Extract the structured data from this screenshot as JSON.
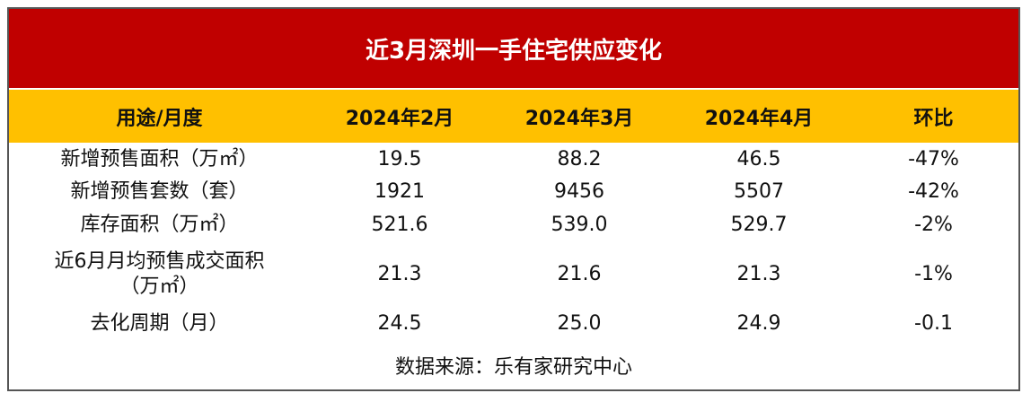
{
  "title": "近3月深圳一手住宅供应变化",
  "table": {
    "header": [
      "用途/月度",
      "2024年2月",
      "2024年3月",
      "2024年4月",
      "环比"
    ],
    "rows": [
      [
        "新增预售面积（万㎡）",
        "19.5",
        "88.2",
        "46.5",
        "-47%"
      ],
      [
        "新增预售套数（套）",
        "1921",
        "9456",
        "5507",
        "-42%"
      ],
      [
        "库存面积（万㎡）",
        "521.6",
        "539.0",
        "529.7",
        "-2%"
      ],
      [
        "近6月月均预售成交面积（万㎡）",
        "21.3",
        "21.6",
        "21.3",
        "-1%"
      ],
      [
        "去化周期（月）",
        "24.5",
        "25.0",
        "24.9",
        "-0.1"
      ]
    ]
  },
  "source": "数据来源：乐有家研究中心"
}
